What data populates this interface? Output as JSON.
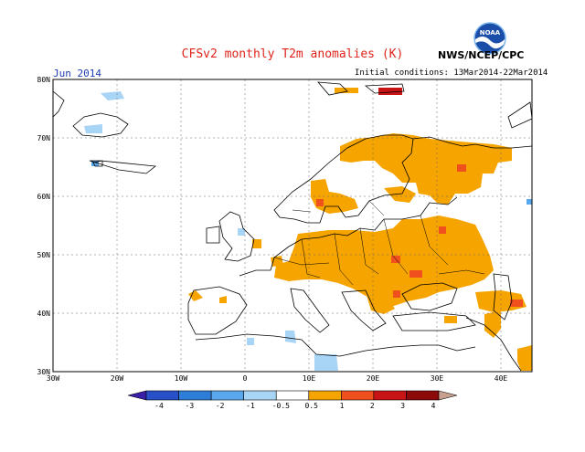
{
  "title": "CFSv2 monthly T2m anomalies (K)",
  "agency": "NWS/NCEP/CPC",
  "logo_text": "NOAA",
  "month": "Jun 2014",
  "initial_conditions": "Initial conditions: 13Mar2014-22Mar2014",
  "lat_labels": [
    "80N",
    "70N",
    "60N",
    "50N",
    "40N",
    "30N"
  ],
  "lon_labels": [
    "30W",
    "20W",
    "10W",
    "0",
    "10E",
    "20E",
    "30E",
    "40E"
  ],
  "colorbar": {
    "labels": [
      "-4",
      "-3",
      "-2",
      "-1",
      "-0.5",
      "0.5",
      "1",
      "2",
      "3",
      "4"
    ],
    "colors": [
      "#3a1ea8",
      "#2850c8",
      "#2e7dd8",
      "#5aa8ec",
      "#a8d4f6",
      "#ffffff",
      "#f5a400",
      "#f0501e",
      "#c81414",
      "#8c0a0a",
      "#c8a090"
    ]
  },
  "anomaly_colors": {
    "warm_light": "#f5a400",
    "warm_mid": "#f0501e",
    "warm_dark": "#c81414",
    "cool_light": "#a8d4f6",
    "cool_mid": "#5aa8ec"
  }
}
